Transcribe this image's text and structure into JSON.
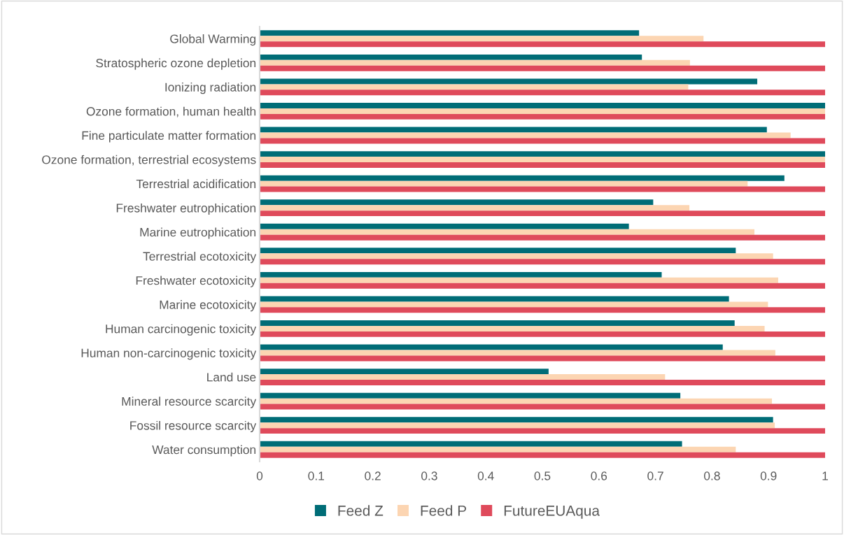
{
  "chart_data": {
    "type": "bar",
    "orientation": "horizontal",
    "categories": [
      "Global Warming",
      "Stratospheric ozone depletion",
      "Ionizing radiation",
      "Ozone formation, human health",
      "Fine particulate matter formation",
      "Ozone formation, terrestrial ecosystems",
      "Terrestrial acidification",
      "Freshwater eutrophication",
      "Marine eutrophication",
      "Terrestrial ecotoxicity",
      "Freshwater ecotoxicity",
      "Marine ecotoxicity",
      "Human carcinogenic toxicity",
      "Human non-carcinogenic toxicity",
      "Land use",
      "Mineral resource scarcity",
      "Fossil resource scarcity",
      "Water consumption"
    ],
    "series": [
      {
        "name": "Feed Z",
        "color": "#006d77",
        "values": [
          0.671,
          0.676,
          0.88,
          1.0,
          0.897,
          1.0,
          0.928,
          0.696,
          0.653,
          0.842,
          0.711,
          0.83,
          0.84,
          0.819,
          0.511,
          0.744,
          0.908,
          0.747
        ]
      },
      {
        "name": "Feed P",
        "color": "#fcd5b2",
        "values": [
          0.785,
          0.761,
          0.758,
          1.0,
          0.939,
          1.0,
          0.863,
          0.76,
          0.875,
          0.908,
          0.917,
          0.899,
          0.893,
          0.912,
          0.717,
          0.906,
          0.911,
          0.842
        ]
      },
      {
        "name": "FutureEUAqua",
        "color": "#df4a5b",
        "values": [
          1,
          1,
          1,
          1,
          1,
          1,
          1,
          1,
          1,
          1,
          1,
          1,
          1,
          1,
          1,
          1,
          1,
          1
        ]
      }
    ],
    "xlim": [
      0,
      1
    ],
    "xticks": [
      0,
      0.1,
      0.2,
      0.3,
      0.4,
      0.5,
      0.6,
      0.7,
      0.8,
      0.9,
      1
    ],
    "grid": false,
    "legend": "bottom"
  }
}
